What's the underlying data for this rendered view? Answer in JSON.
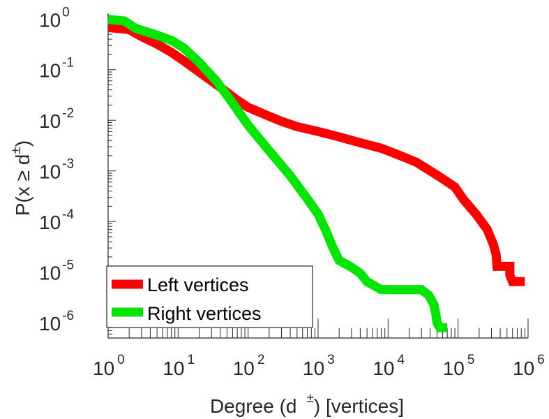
{
  "chart_data": {
    "type": "line",
    "scale": "log-log",
    "title": "",
    "xlabel": {
      "pre": "Degree (d",
      "sup": "±",
      "post": ") [vertices]"
    },
    "ylabel": {
      "pre": "P(x ≥ d",
      "sup": "±",
      "post": ")"
    },
    "xlim": [
      1,
      1000000
    ],
    "ylim": [
      5e-07,
      1.3
    ],
    "grid": false,
    "legend_position": "bottom-left",
    "x_ticks": [
      {
        "base": "10",
        "exp": "0",
        "value": 1
      },
      {
        "base": "10",
        "exp": "1",
        "value": 10
      },
      {
        "base": "10",
        "exp": "2",
        "value": 100
      },
      {
        "base": "10",
        "exp": "3",
        "value": 1000
      },
      {
        "base": "10",
        "exp": "4",
        "value": 10000
      },
      {
        "base": "10",
        "exp": "5",
        "value": 100000
      },
      {
        "base": "10",
        "exp": "6",
        "value": 1000000
      }
    ],
    "y_ticks": [
      {
        "base": "10",
        "exp": "0",
        "value": 1
      },
      {
        "base": "10",
        "exp": "-1",
        "value": 0.1
      },
      {
        "base": "10",
        "exp": "-2",
        "value": 0.01
      },
      {
        "base": "10",
        "exp": "-3",
        "value": 0.001
      },
      {
        "base": "10",
        "exp": "-4",
        "value": 0.0001
      },
      {
        "base": "10",
        "exp": "-5",
        "value": 1e-05
      },
      {
        "base": "10",
        "exp": "-6",
        "value": 1e-06
      }
    ],
    "series": [
      {
        "name": "Left vertices",
        "color": "#ff0000",
        "points": [
          [
            1,
            0.68
          ],
          [
            2,
            0.62
          ],
          [
            3,
            0.45
          ],
          [
            5,
            0.32
          ],
          [
            8,
            0.22
          ],
          [
            12,
            0.15
          ],
          [
            20,
            0.09
          ],
          [
            40,
            0.045
          ],
          [
            70,
            0.025
          ],
          [
            100,
            0.018
          ],
          [
            200,
            0.012
          ],
          [
            300,
            0.0095
          ],
          [
            500,
            0.0075
          ],
          [
            1000,
            0.006
          ],
          [
            2000,
            0.0047
          ],
          [
            4000,
            0.0036
          ],
          [
            8000,
            0.0028
          ],
          [
            15000,
            0.002
          ],
          [
            25000,
            0.0015
          ],
          [
            40000,
            0.001
          ],
          [
            60000,
            0.0007
          ],
          [
            90000,
            0.00048
          ],
          [
            120000,
            0.00027
          ],
          [
            180000,
            0.00014
          ],
          [
            260000,
            7e-05
          ],
          [
            320000,
            3.5e-05
          ],
          [
            350000,
            2.2e-05
          ],
          [
            360000,
            1.3e-05
          ],
          [
            550000,
            1.3e-05
          ],
          [
            550000,
            8.7e-06
          ],
          [
            600000,
            6.5e-06
          ],
          [
            900000,
            6.5e-06
          ]
        ]
      },
      {
        "name": "Right vertices",
        "color": "#00e600",
        "points": [
          [
            1,
            0.98
          ],
          [
            1.7,
            0.92
          ],
          [
            2.5,
            0.65
          ],
          [
            3,
            0.6
          ],
          [
            5,
            0.48
          ],
          [
            8,
            0.38
          ],
          [
            12,
            0.27
          ],
          [
            20,
            0.14
          ],
          [
            35,
            0.06
          ],
          [
            60,
            0.022
          ],
          [
            100,
            0.008
          ],
          [
            200,
            0.0025
          ],
          [
            400,
            0.0008
          ],
          [
            700,
            0.00028
          ],
          [
            1000,
            0.00014
          ],
          [
            1300,
            6.5e-05
          ],
          [
            1600,
            3.2e-05
          ],
          [
            2000,
            1.7e-05
          ],
          [
            3000,
            1.25e-05
          ],
          [
            4000,
            9.5e-06
          ],
          [
            5000,
            6.5e-06
          ],
          [
            8000,
            4.5e-06
          ],
          [
            30000,
            4.5e-06
          ],
          [
            38000,
            3.5e-06
          ],
          [
            45000,
            2.3e-06
          ],
          [
            48000,
            1.5e-06
          ],
          [
            50000,
            1e-06
          ],
          [
            55000,
            8e-07
          ],
          [
            70000,
            8e-07
          ]
        ]
      }
    ]
  }
}
